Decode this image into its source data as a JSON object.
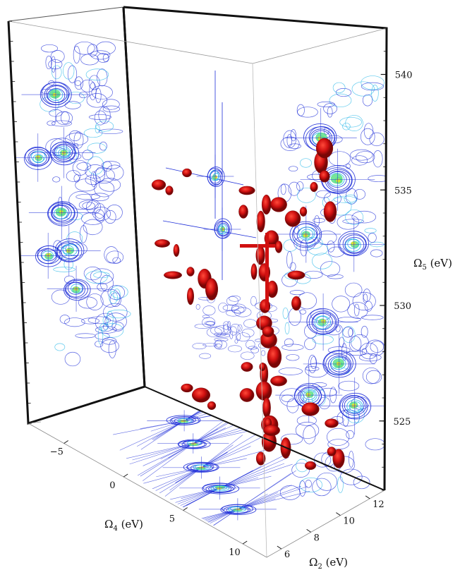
{
  "chart_data": {
    "type": "contour-3d",
    "title": "",
    "axes": {
      "omega5": {
        "label": "Ω5 (eV)",
        "label_main": "Ω",
        "label_sub": "5",
        "label_unit": " (eV)",
        "range": [
          522,
          542
        ],
        "ticks": [
          525,
          530,
          535,
          540
        ]
      },
      "omega4": {
        "label": "Ω4 (eV)",
        "label_main": "Ω",
        "label_sub": "4",
        "label_unit": " (eV)",
        "range": [
          -8,
          12
        ],
        "ticks": [
          -5,
          0,
          5,
          10
        ]
      },
      "omega2": {
        "label": "Ω2 (eV)",
        "label_main": "Ω",
        "label_sub": "2",
        "label_unit": " (eV)",
        "range": [
          5,
          13
        ],
        "ticks": [
          6,
          8,
          10,
          12
        ]
      }
    },
    "colors": {
      "contour_outer": "#1f2fd8",
      "contour_mid": "#2bb8e8",
      "contour_high": "#5fe08a",
      "contour_peak": "#e8e020",
      "isosurface": "#d01010",
      "frame": "#111111"
    },
    "projections": [
      {
        "plane": "Ω4-Ω5 (back-left wall)",
        "peaks": [
          {
            "omega4": -7,
            "omega5": 535,
            "level": 0.7
          },
          {
            "omega4": -3,
            "omega5": 538,
            "level": 1.0
          },
          {
            "omega4": -2,
            "omega5": 535,
            "level": 0.8
          },
          {
            "omega4": -3,
            "omega5": 532,
            "level": 0.9
          },
          {
            "omega4": -2,
            "omega5": 530,
            "level": 0.8
          },
          {
            "omega4": -6,
            "omega5": 530,
            "level": 0.6
          },
          {
            "omega4": -1,
            "omega5": 528,
            "level": 0.6
          }
        ]
      },
      {
        "plane": "Ω2-Ω5 (back-right wall)",
        "peaks": [
          {
            "omega2": 9,
            "omega5": 538,
            "level": 0.9
          },
          {
            "omega2": 10,
            "omega5": 536,
            "level": 1.0
          },
          {
            "omega2": 8,
            "omega5": 534,
            "level": 0.8
          },
          {
            "omega2": 11,
            "omega5": 533,
            "level": 0.7
          },
          {
            "omega2": 9,
            "omega5": 530,
            "level": 0.8
          },
          {
            "omega2": 10,
            "omega5": 528,
            "level": 0.9
          },
          {
            "omega2": 11,
            "omega5": 526,
            "level": 0.8
          },
          {
            "omega2": 8,
            "omega5": 527,
            "level": 0.7
          }
        ]
      },
      {
        "plane": "Ω4-Ω2 (floor)",
        "peaks": [
          {
            "omega4": -4,
            "omega2": 7,
            "level": 0.6
          },
          {
            "omega4": 0,
            "omega2": 8,
            "level": 0.5
          },
          {
            "omega4": 4,
            "omega2": 9,
            "level": 0.7
          },
          {
            "omega4": 6,
            "omega2": 10,
            "level": 0.8
          },
          {
            "omega4": 8,
            "omega2": 11,
            "level": 0.7
          }
        ]
      }
    ]
  }
}
